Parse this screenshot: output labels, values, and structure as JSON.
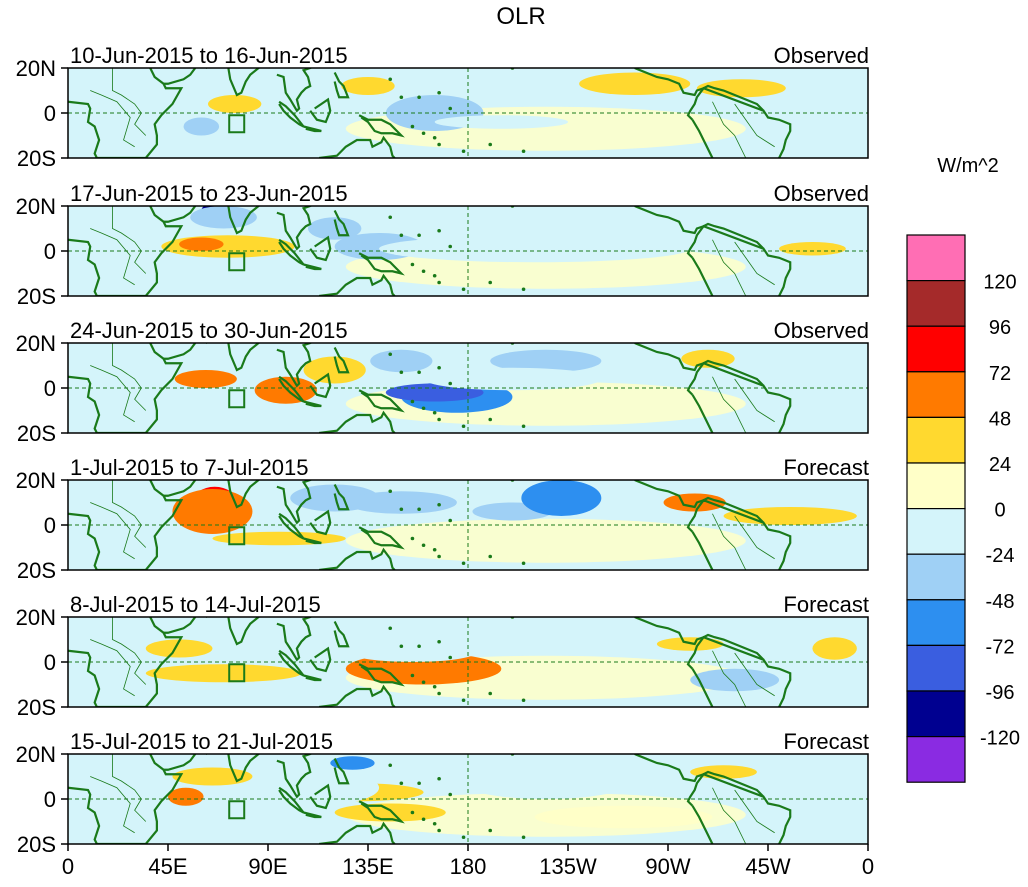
{
  "chart_data": {
    "type": "heatmap",
    "title": "OLR",
    "units_label": "W/m^2",
    "x_ticks": [
      "0",
      "45E",
      "90E",
      "135E",
      "180",
      "135W",
      "90W",
      "45W",
      "0"
    ],
    "y_ticks": [
      "20N",
      "0",
      "20S"
    ],
    "x_range_deg_east": [
      0,
      360
    ],
    "y_range_deg": [
      -20,
      20
    ],
    "colorbar": {
      "labels": [
        "120",
        "96",
        "72",
        "48",
        "24",
        "0",
        "-24",
        "-48",
        "-72",
        "-96",
        "-120"
      ],
      "colors": [
        "#ff6eb4",
        "#a52a2a",
        "#ff0000",
        "#ff7a00",
        "#ffd92f",
        "#ffffc8",
        "#d4f4fa",
        "#9fd0f5",
        "#2d8ff0",
        "#3a5ee0",
        "#000090",
        "#8a2be2"
      ]
    },
    "panels": [
      {
        "period": "10-Jun-2015 to 16-Jun-2015",
        "kind": "Observed",
        "anomalies": [
          {
            "lon": 255,
            "lat": 13,
            "w": 25,
            "h": 5,
            "level": 24
          },
          {
            "lon": 303,
            "lat": 11,
            "w": 20,
            "h": 4,
            "level": 24
          },
          {
            "lon": 75,
            "lat": 4,
            "w": 12,
            "h": 4,
            "level": 24
          },
          {
            "lon": 135,
            "lat": 12,
            "w": 12,
            "h": 4,
            "level": 24
          },
          {
            "lon": 60,
            "lat": -6,
            "w": 8,
            "h": 4,
            "level": -48
          },
          {
            "lon": 88,
            "lat": -7,
            "w": 10,
            "h": 4,
            "level": -24
          },
          {
            "lon": 125,
            "lat": 1,
            "w": 12,
            "h": 4,
            "level": -24
          },
          {
            "lon": 163,
            "lat": -1,
            "w": 10,
            "h": 5,
            "level": -72
          },
          {
            "lon": 165,
            "lat": 0,
            "w": 22,
            "h": 8,
            "level": -48
          },
          {
            "lon": 195,
            "lat": -4,
            "w": 30,
            "h": 3,
            "level": -24
          }
        ]
      },
      {
        "period": "17-Jun-2015 to 23-Jun-2015",
        "kind": "Observed",
        "anomalies": [
          {
            "lon": 65,
            "lat": 18,
            "w": 5,
            "h": 3,
            "level": -120
          },
          {
            "lon": 70,
            "lat": 15,
            "w": 15,
            "h": 5,
            "level": -48
          },
          {
            "lon": 72,
            "lat": 2,
            "w": 30,
            "h": 5,
            "level": 24
          },
          {
            "lon": 60,
            "lat": 3,
            "w": 10,
            "h": 3,
            "level": 48
          },
          {
            "lon": 120,
            "lat": 10,
            "w": 12,
            "h": 5,
            "level": -48
          },
          {
            "lon": 140,
            "lat": 2,
            "w": 20,
            "h": 6,
            "level": -48
          },
          {
            "lon": 210,
            "lat": 2,
            "w": 55,
            "h": 4,
            "level": -48
          },
          {
            "lon": 210,
            "lat": 1,
            "w": 70,
            "h": 6,
            "level": -24
          },
          {
            "lon": 335,
            "lat": 1,
            "w": 15,
            "h": 3,
            "level": 24
          }
        ]
      },
      {
        "period": "24-Jun-2015 to 30-Jun-2015",
        "kind": "Observed",
        "anomalies": [
          {
            "lon": 62,
            "lat": 4,
            "w": 14,
            "h": 4,
            "level": 48
          },
          {
            "lon": 98,
            "lat": -1,
            "w": 14,
            "h": 6,
            "level": 48
          },
          {
            "lon": 120,
            "lat": 8,
            "w": 14,
            "h": 6,
            "level": 24
          },
          {
            "lon": 150,
            "lat": 12,
            "w": 14,
            "h": 5,
            "level": -48
          },
          {
            "lon": 175,
            "lat": -4,
            "w": 25,
            "h": 7,
            "level": -72
          },
          {
            "lon": 165,
            "lat": -2,
            "w": 22,
            "h": 4,
            "level": -96
          },
          {
            "lon": 215,
            "lat": 12,
            "w": 25,
            "h": 5,
            "level": -48
          },
          {
            "lon": 200,
            "lat": 4,
            "w": 40,
            "h": 5,
            "level": -24
          },
          {
            "lon": 288,
            "lat": 13,
            "w": 12,
            "h": 4,
            "level": 24
          }
        ]
      },
      {
        "period": "1-Jul-2015 to 7-Jul-2015",
        "kind": "Forecast",
        "anomalies": [
          {
            "lon": 66,
            "lat": 10,
            "w": 10,
            "h": 7,
            "level": 72
          },
          {
            "lon": 65,
            "lat": 6,
            "w": 18,
            "h": 10,
            "level": 48
          },
          {
            "lon": 120,
            "lat": 12,
            "w": 20,
            "h": 6,
            "level": -48
          },
          {
            "lon": 150,
            "lat": 10,
            "w": 25,
            "h": 5,
            "level": -48
          },
          {
            "lon": 200,
            "lat": 6,
            "w": 18,
            "h": 4,
            "level": -48
          },
          {
            "lon": 222,
            "lat": 12,
            "w": 18,
            "h": 8,
            "level": -72
          },
          {
            "lon": 95,
            "lat": -6,
            "w": 30,
            "h": 3,
            "level": 24
          },
          {
            "lon": 282,
            "lat": 10,
            "w": 14,
            "h": 4,
            "level": 48
          },
          {
            "lon": 325,
            "lat": 4,
            "w": 30,
            "h": 4,
            "level": 24
          }
        ]
      },
      {
        "period": "8-Jul-2015 to 14-Jul-2015",
        "kind": "Forecast",
        "anomalies": [
          {
            "lon": 50,
            "lat": 6,
            "w": 15,
            "h": 4,
            "level": 24
          },
          {
            "lon": 70,
            "lat": -5,
            "w": 35,
            "h": 4,
            "level": 24
          },
          {
            "lon": 165,
            "lat": -4,
            "w": 12,
            "h": 4,
            "level": 72
          },
          {
            "lon": 160,
            "lat": -3,
            "w": 35,
            "h": 7,
            "level": 48
          },
          {
            "lon": 155,
            "lat": 5,
            "w": 30,
            "h": 5,
            "level": -24
          },
          {
            "lon": 225,
            "lat": 10,
            "w": 25,
            "h": 6,
            "level": -24
          },
          {
            "lon": 280,
            "lat": 8,
            "w": 15,
            "h": 3,
            "level": 24
          },
          {
            "lon": 300,
            "lat": -8,
            "w": 20,
            "h": 5,
            "level": -48
          },
          {
            "lon": 345,
            "lat": 6,
            "w": 10,
            "h": 5,
            "level": 24
          }
        ]
      },
      {
        "period": "15-Jul-2015 to 21-Jul-2015",
        "kind": "Forecast",
        "anomalies": [
          {
            "lon": 53,
            "lat": 1,
            "w": 8,
            "h": 4,
            "level": 48
          },
          {
            "lon": 65,
            "lat": 10,
            "w": 18,
            "h": 4,
            "level": 24
          },
          {
            "lon": 128,
            "lat": 16,
            "w": 10,
            "h": 3,
            "level": -72
          },
          {
            "lon": 130,
            "lat": 3,
            "w": 30,
            "h": 4,
            "level": 24
          },
          {
            "lon": 145,
            "lat": -6,
            "w": 25,
            "h": 4,
            "level": 24
          },
          {
            "lon": 110,
            "lat": 5,
            "w": 30,
            "h": 8,
            "level": -24
          },
          {
            "lon": 215,
            "lat": 6,
            "w": 35,
            "h": 6,
            "level": -24
          },
          {
            "lon": 295,
            "lat": 12,
            "w": 15,
            "h": 3,
            "level": 24
          },
          {
            "lon": 250,
            "lat": -8,
            "w": 40,
            "h": 5,
            "level": 0
          }
        ]
      }
    ]
  }
}
